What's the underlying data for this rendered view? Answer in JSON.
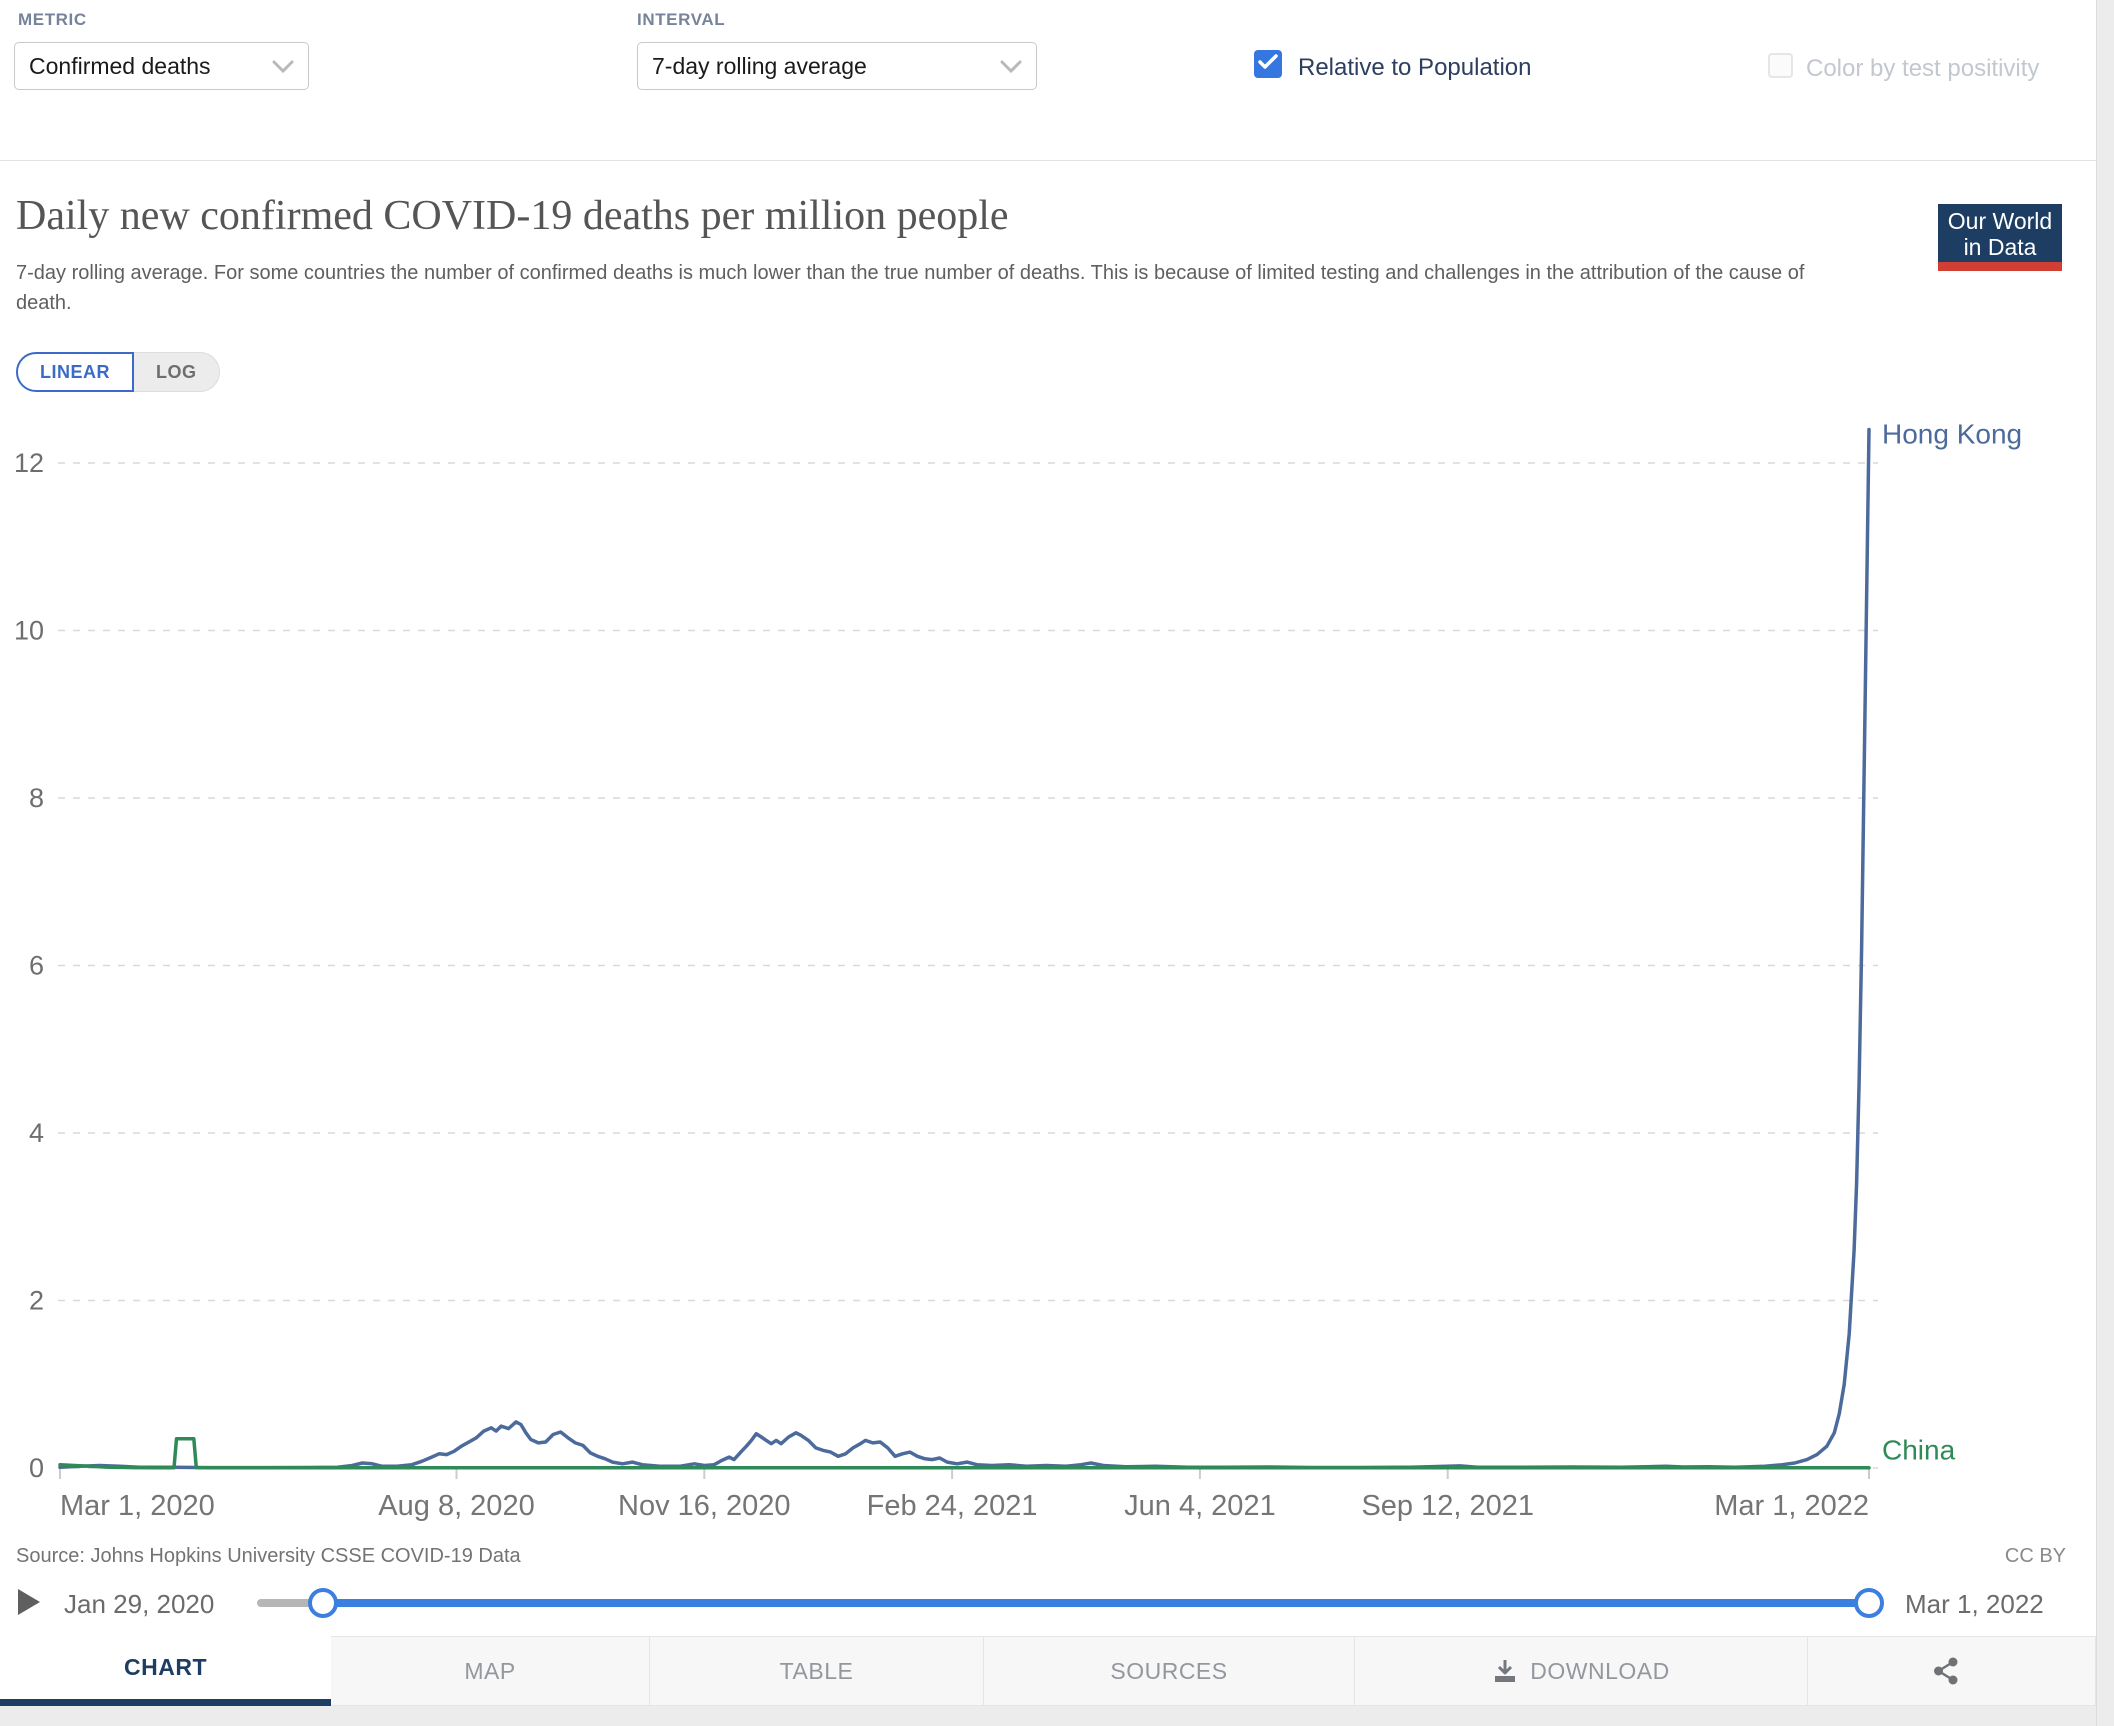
{
  "top_bar": {
    "metric_label": "METRIC",
    "metric_value": "Confirmed deaths",
    "interval_label": "INTERVAL",
    "interval_value": "7-day rolling average",
    "relative_label": "Relative to Population",
    "relative_checked": true,
    "positivity_label": "Color by test positivity",
    "positivity_checked": false
  },
  "header": {
    "title": "Daily new confirmed COVID-19 deaths per million people",
    "subtitle": "7-day rolling average. For some countries the number of confirmed deaths is much lower than the true number of deaths. This is because of limited testing and challenges in the attribution of the cause of death.",
    "logo_line1": "Our World",
    "logo_line2": "in Data"
  },
  "scale_toggle": {
    "linear_label": "LINEAR",
    "log_label": "LOG",
    "active": "LINEAR"
  },
  "chart_data": {
    "type": "line",
    "title": "Daily new confirmed COVID-19 deaths per million people",
    "ylabel": "",
    "xlabel": "",
    "ylim": [
      0,
      12.5
    ],
    "yticks": [
      0,
      2,
      4,
      6,
      8,
      10,
      12
    ],
    "grid": "horizontal-dashed",
    "legend_position": "line-end-labels",
    "x_total_days": 730,
    "xticks": [
      {
        "label": "Mar 1, 2020",
        "day": 0
      },
      {
        "label": "Aug 8, 2020",
        "day": 160
      },
      {
        "label": "Nov 16, 2020",
        "day": 260
      },
      {
        "label": "Feb 24, 2021",
        "day": 360
      },
      {
        "label": "Jun 4, 2021",
        "day": 460
      },
      {
        "label": "Sep 12, 2021",
        "day": 560
      },
      {
        "label": "Mar 1, 2022",
        "day": 730
      }
    ],
    "series": [
      {
        "name": "Hong Kong",
        "color": "#4c6a9c",
        "label_dy": 14,
        "points": [
          [
            0,
            0.01
          ],
          [
            8,
            0.02
          ],
          [
            16,
            0.03
          ],
          [
            24,
            0.02
          ],
          [
            32,
            0.01
          ],
          [
            45,
            0.008
          ],
          [
            60,
            0.005
          ],
          [
            80,
            0.005
          ],
          [
            100,
            0.006
          ],
          [
            112,
            0.01
          ],
          [
            118,
            0.03
          ],
          [
            122,
            0.06
          ],
          [
            126,
            0.05
          ],
          [
            130,
            0.02
          ],
          [
            136,
            0.02
          ],
          [
            142,
            0.04
          ],
          [
            146,
            0.08
          ],
          [
            150,
            0.13
          ],
          [
            153,
            0.17
          ],
          [
            156,
            0.16
          ],
          [
            159,
            0.2
          ],
          [
            162,
            0.26
          ],
          [
            165,
            0.31
          ],
          [
            168,
            0.36
          ],
          [
            171,
            0.44
          ],
          [
            174,
            0.48
          ],
          [
            176,
            0.44
          ],
          [
            178,
            0.5
          ],
          [
            181,
            0.47
          ],
          [
            184,
            0.55
          ],
          [
            186,
            0.52
          ],
          [
            188,
            0.42
          ],
          [
            190,
            0.34
          ],
          [
            193,
            0.3
          ],
          [
            196,
            0.31
          ],
          [
            199,
            0.4
          ],
          [
            202,
            0.43
          ],
          [
            205,
            0.36
          ],
          [
            208,
            0.3
          ],
          [
            211,
            0.27
          ],
          [
            214,
            0.18
          ],
          [
            217,
            0.14
          ],
          [
            220,
            0.11
          ],
          [
            223,
            0.07
          ],
          [
            227,
            0.05
          ],
          [
            231,
            0.07
          ],
          [
            235,
            0.04
          ],
          [
            242,
            0.02
          ],
          [
            250,
            0.02
          ],
          [
            256,
            0.05
          ],
          [
            260,
            0.03
          ],
          [
            264,
            0.04
          ],
          [
            267,
            0.09
          ],
          [
            270,
            0.13
          ],
          [
            272,
            0.1
          ],
          [
            275,
            0.2
          ],
          [
            277,
            0.26
          ],
          [
            279,
            0.33
          ],
          [
            281,
            0.41
          ],
          [
            283,
            0.37
          ],
          [
            285,
            0.33
          ],
          [
            287,
            0.29
          ],
          [
            289,
            0.33
          ],
          [
            291,
            0.29
          ],
          [
            294,
            0.37
          ],
          [
            297,
            0.42
          ],
          [
            299,
            0.39
          ],
          [
            302,
            0.33
          ],
          [
            305,
            0.24
          ],
          [
            308,
            0.21
          ],
          [
            311,
            0.19
          ],
          [
            314,
            0.14
          ],
          [
            317,
            0.17
          ],
          [
            320,
            0.24
          ],
          [
            323,
            0.29
          ],
          [
            325,
            0.33
          ],
          [
            328,
            0.3
          ],
          [
            331,
            0.31
          ],
          [
            334,
            0.24
          ],
          [
            337,
            0.14
          ],
          [
            340,
            0.17
          ],
          [
            343,
            0.19
          ],
          [
            346,
            0.14
          ],
          [
            349,
            0.11
          ],
          [
            352,
            0.1
          ],
          [
            355,
            0.12
          ],
          [
            358,
            0.07
          ],
          [
            362,
            0.05
          ],
          [
            366,
            0.07
          ],
          [
            370,
            0.04
          ],
          [
            376,
            0.03
          ],
          [
            383,
            0.04
          ],
          [
            390,
            0.02
          ],
          [
            398,
            0.03
          ],
          [
            406,
            0.02
          ],
          [
            412,
            0.04
          ],
          [
            416,
            0.06
          ],
          [
            421,
            0.03
          ],
          [
            430,
            0.015
          ],
          [
            442,
            0.02
          ],
          [
            455,
            0.01
          ],
          [
            470,
            0.008
          ],
          [
            488,
            0.012
          ],
          [
            505,
            0.006
          ],
          [
            525,
            0.006
          ],
          [
            545,
            0.01
          ],
          [
            565,
            0.025
          ],
          [
            572,
            0.01
          ],
          [
            590,
            0.008
          ],
          [
            610,
            0.012
          ],
          [
            630,
            0.008
          ],
          [
            648,
            0.02
          ],
          [
            655,
            0.012
          ],
          [
            665,
            0.015
          ],
          [
            676,
            0.01
          ],
          [
            688,
            0.02
          ],
          [
            695,
            0.04
          ],
          [
            700,
            0.06
          ],
          [
            705,
            0.1
          ],
          [
            709,
            0.16
          ],
          [
            713,
            0.26
          ],
          [
            716,
            0.42
          ],
          [
            718,
            0.65
          ],
          [
            720,
            1.0
          ],
          [
            722,
            1.6
          ],
          [
            724,
            2.6
          ],
          [
            725,
            3.4
          ],
          [
            726,
            4.6
          ],
          [
            727,
            6.2
          ],
          [
            728,
            8.2
          ],
          [
            729,
            10.3
          ],
          [
            730,
            12.4
          ]
        ]
      },
      {
        "name": "China",
        "color": "#2e8b57",
        "label_dy": -8,
        "points": [
          [
            0,
            0.038
          ],
          [
            4,
            0.033
          ],
          [
            8,
            0.027
          ],
          [
            12,
            0.02
          ],
          [
            16,
            0.014
          ],
          [
            20,
            0.01
          ],
          [
            25,
            0.007
          ],
          [
            30,
            0.005
          ],
          [
            38,
            0.004
          ],
          [
            46,
            0.004
          ],
          [
            47,
            0.35
          ],
          [
            54,
            0.35
          ],
          [
            55,
            0.005
          ],
          [
            60,
            0.003
          ],
          [
            80,
            0.002
          ],
          [
            120,
            0.002
          ],
          [
            160,
            0.002
          ],
          [
            200,
            0.002
          ],
          [
            240,
            0.002
          ],
          [
            280,
            0.002
          ],
          [
            320,
            0.003
          ],
          [
            360,
            0.002
          ],
          [
            400,
            0.002
          ],
          [
            440,
            0.002
          ],
          [
            480,
            0.002
          ],
          [
            520,
            0.002
          ],
          [
            560,
            0.002
          ],
          [
            600,
            0.002
          ],
          [
            640,
            0.002
          ],
          [
            680,
            0.002
          ],
          [
            710,
            0.003
          ],
          [
            730,
            0.004
          ]
        ]
      }
    ]
  },
  "footer": {
    "source": "Source: Johns Hopkins University CSSE COVID-19 Data",
    "license": "CC BY"
  },
  "timeline": {
    "start_label": "Jan 29, 2020",
    "end_label": "Mar 1, 2022"
  },
  "tabs": {
    "items": [
      {
        "label": "CHART",
        "active": true
      },
      {
        "label": "MAP",
        "active": false
      },
      {
        "label": "TABLE",
        "active": false
      },
      {
        "label": "SOURCES",
        "active": false
      },
      {
        "label": "DOWNLOAD",
        "active": false
      },
      {
        "label": "",
        "active": false
      }
    ]
  },
  "colors": {
    "accent_blue": "#3b7fe0",
    "checkbox_blue": "#3576e0",
    "linear_blue": "#3b6bc7",
    "navy": "#1d3d63",
    "logo_red": "#cf3f33",
    "hong_kong_line": "#4c6a9c",
    "china_line": "#2e8b57",
    "grid_gray": "#d9d9d9",
    "title_gray": "#555555"
  }
}
